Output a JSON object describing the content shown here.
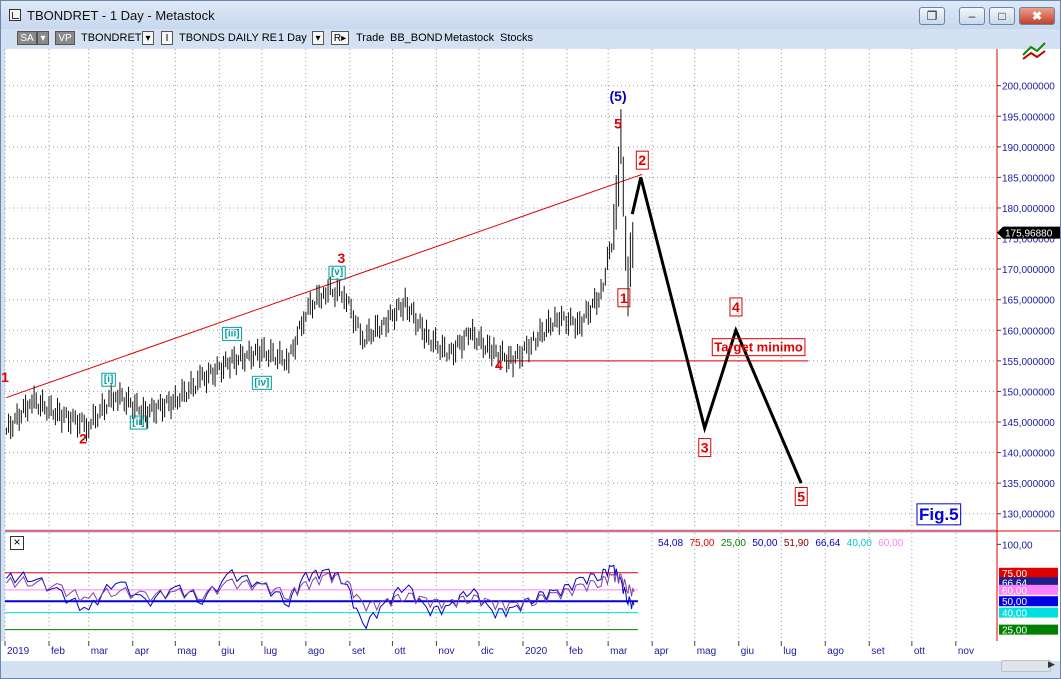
{
  "window": {
    "title": "TBONDRET - 1 Day - Metastock",
    "controls": {
      "restore": "❐",
      "minimize": "–",
      "maximize": "□",
      "close": "✖"
    },
    "extra_icon": "chart-window-icon"
  },
  "toolbar": {
    "sa": "SA",
    "vp": "VP",
    "symbol": "TBONDRET",
    "security_name": "TBONDS DAILY RE",
    "period": "1 Day",
    "trade": "Trade",
    "expert": "BB_BOND",
    "source": "Metastock",
    "asset_class": "Stocks"
  },
  "chart_data": [
    {
      "type": "line",
      "subtype": "ohlc-bars",
      "price_axis": {
        "ticks": [
          "130,000000",
          "135,000000",
          "140,000000",
          "145,000000",
          "150,000000",
          "155,000000",
          "160,000000",
          "165,000000",
          "170,000000",
          "175,000000",
          "180,000000",
          "185,000000",
          "190,000000",
          "195,000000",
          "200,000000"
        ],
        "tick_values": [
          130,
          135,
          140,
          145,
          150,
          155,
          160,
          165,
          170,
          175,
          180,
          185,
          190,
          195,
          200
        ],
        "range": [
          127.5,
          206
        ],
        "last_price_label": "175,96880",
        "last_price": 175.9688,
        "side": "right"
      },
      "time_axis": {
        "labels": [
          "2019",
          "feb",
          "mar",
          "apr",
          "mag",
          "giu",
          "lug",
          "ago",
          "set",
          "ott",
          "nov",
          "dic",
          "2020",
          "feb",
          "mar",
          "apr",
          "mag",
          "giu",
          "lug",
          "ago",
          "set",
          "ott",
          "nov"
        ],
        "range": [
          "2019-01-01",
          "2020-11-30"
        ]
      },
      "series": [
        {
          "x": [
            "2019-01-02",
            "2019-01-20",
            "2019-02-10",
            "2019-03-01",
            "2019-03-20",
            "2019-04-10",
            "2019-05-01",
            "2019-05-20",
            "2019-06-10",
            "2019-07-01",
            "2019-07-20",
            "2019-08-01",
            "2019-08-15",
            "2019-08-28",
            "2019-09-10",
            "2019-09-25",
            "2019-10-10",
            "2019-10-25",
            "2019-11-10",
            "2019-11-25",
            "2019-12-10",
            "2019-12-25",
            "2020-01-10",
            "2020-01-25",
            "2020-02-10",
            "2020-02-25",
            "2020-03-05",
            "2020-03-10",
            "2020-03-15",
            "2020-03-20"
          ],
          "values": [
            143.5,
            148.5,
            146.0,
            144.5,
            149.5,
            146.5,
            148.5,
            152.0,
            155.0,
            156.5,
            155.0,
            163.0,
            166.5,
            166.0,
            158.5,
            161.0,
            164.5,
            159.0,
            156.0,
            159.5,
            156.5,
            155.0,
            158.5,
            162.0,
            161.0,
            166.0,
            176.0,
            191.0,
            167.0,
            178.0
          ]
        }
      ],
      "trendline": {
        "from": {
          "x": "2019-01-02",
          "y": 149.0
        },
        "to": {
          "x": "2020-03-25",
          "y": 185.5
        }
      },
      "support_line": {
        "y": 155.0,
        "from": "2019-12-20",
        "to": "2020-07-20"
      },
      "projection": {
        "x": [
          "2020-03-18",
          "2020-03-24",
          "2020-05-08",
          "2020-05-30",
          "2020-07-15"
        ],
        "y": [
          179.0,
          185.0,
          144.0,
          160.0,
          135.0
        ]
      },
      "annotations": [
        {
          "text": "1",
          "x": "2019-01-01",
          "y": 151.5,
          "color": "#e00000",
          "boxed": false
        },
        {
          "text": "2",
          "x": "2019-02-25",
          "y": 141.5,
          "color": "#e00000",
          "boxed": false
        },
        {
          "text": "3",
          "x": "2019-08-26",
          "y": 171.0,
          "color": "#e00000",
          "boxed": false
        },
        {
          "text": "4",
          "x": "2019-12-15",
          "y": 153.5,
          "color": "#e00000",
          "boxed": false
        },
        {
          "text": "5",
          "x": "2020-03-08",
          "y": 193.0,
          "color": "#e00000",
          "boxed": false
        },
        {
          "text": "(5)",
          "x": "2020-03-08",
          "y": 197.5,
          "color": "#0000c8",
          "boxed": false
        },
        {
          "text": "[i]",
          "x": "2019-03-15",
          "y": 151.5,
          "color": "#00a0a0",
          "boxed": true
        },
        {
          "text": "[ii]",
          "x": "2019-04-05",
          "y": 144.5,
          "color": "#00a0a0",
          "boxed": true
        },
        {
          "text": "[iii]",
          "x": "2019-06-10",
          "y": 159.0,
          "color": "#00a0a0",
          "boxed": true
        },
        {
          "text": "[iv]",
          "x": "2019-07-01",
          "y": 151.0,
          "color": "#00a0a0",
          "boxed": true
        },
        {
          "text": "[v]",
          "x": "2019-08-23",
          "y": 169.0,
          "color": "#00a0a0",
          "boxed": true
        },
        {
          "text": "1",
          "x": "2020-03-12",
          "y": 164.5,
          "color": "#e00000",
          "boxed": true
        },
        {
          "text": "2",
          "x": "2020-03-25",
          "y": 187.0,
          "color": "#e00000",
          "boxed": true
        },
        {
          "text": "3",
          "x": "2020-05-08",
          "y": 140.0,
          "color": "#e00000",
          "boxed": true
        },
        {
          "text": "4",
          "x": "2020-05-30",
          "y": 163.0,
          "color": "#e00000",
          "boxed": true
        },
        {
          "text": "5",
          "x": "2020-07-15",
          "y": 132.0,
          "color": "#e00000",
          "boxed": true
        },
        {
          "text": "Target minimo",
          "x": "2020-06-15",
          "y": 156.5,
          "color": "#e00000",
          "boxed": true
        },
        {
          "text": "Fig.5",
          "x": "2020-10-20",
          "y": 129.0,
          "color": "#0000e0",
          "boxed": true
        }
      ]
    },
    {
      "type": "line",
      "subtype": "oscillator",
      "legend_values": [
        {
          "text": "54,08",
          "color": "#0000c8"
        },
        {
          "text": "75,00",
          "color": "#e00000"
        },
        {
          "text": "25,00",
          "color": "#008000"
        },
        {
          "text": "50,00",
          "color": "#0000c8"
        },
        {
          "text": "51,90",
          "color": "#800000"
        },
        {
          "text": "66,64",
          "color": "#0000c8"
        },
        {
          "text": "40,00",
          "color": "#00c8c8"
        },
        {
          "text": "60,00",
          "color": "#ff80ff"
        }
      ],
      "axis": {
        "ticks": [
          "100,00"
        ],
        "tick_values": [
          100
        ],
        "range": [
          15,
          110
        ],
        "level_labels": [
          {
            "text": "75,00",
            "value": 75,
            "bg": "#e00000",
            "fg": "#ffffff"
          },
          {
            "text": "66,64",
            "value": 66.64,
            "bg": "#1f1f8c",
            "fg": "#ffffff"
          },
          {
            "text": "60,00",
            "value": 60,
            "bg": "#ff80ff",
            "fg": "#ffffff"
          },
          {
            "text": "50,00",
            "value": 50,
            "bg": "#0000e0",
            "fg": "#ffffff"
          },
          {
            "text": "40,00",
            "value": 40,
            "bg": "#00e0e0",
            "fg": "#ffffff"
          },
          {
            "text": "25,00",
            "value": 25,
            "bg": "#008000",
            "fg": "#ffffff"
          }
        ]
      },
      "levels": [
        {
          "value": 75,
          "color": "#e00000"
        },
        {
          "value": 60,
          "color": "#ff80ff"
        },
        {
          "value": 50,
          "color": "#0000e0"
        },
        {
          "value": 40,
          "color": "#00e0e0"
        },
        {
          "value": 25,
          "color": "#008000"
        }
      ],
      "series": [
        {
          "name": "",
          "color": "#0000c8",
          "x": [
            "2019-01-02",
            "2019-01-20",
            "2019-02-10",
            "2019-03-01",
            "2019-03-20",
            "2019-04-10",
            "2019-05-01",
            "2019-05-20",
            "2019-06-10",
            "2019-07-01",
            "2019-07-20",
            "2019-08-01",
            "2019-08-15",
            "2019-08-28",
            "2019-09-10",
            "2019-09-25",
            "2019-10-10",
            "2019-10-25",
            "2019-11-10",
            "2019-11-25",
            "2019-12-10",
            "2019-12-25",
            "2020-01-10",
            "2020-01-25",
            "2020-02-10",
            "2020-02-25",
            "2020-03-05",
            "2020-03-10",
            "2020-03-15",
            "2020-03-20"
          ],
          "values": [
            70,
            72,
            55,
            42,
            70,
            48,
            62,
            52,
            74,
            64,
            50,
            72,
            76,
            70,
            28,
            46,
            66,
            42,
            44,
            62,
            40,
            42,
            55,
            58,
            68,
            74,
            80,
            66,
            52,
            44
          ]
        },
        {
          "name": "",
          "color": "#8040a0",
          "x": [
            "2019-01-02",
            "2019-01-20",
            "2019-02-10",
            "2019-03-01",
            "2019-03-20",
            "2019-04-10",
            "2019-05-01",
            "2019-05-20",
            "2019-06-10",
            "2019-07-01",
            "2019-07-20",
            "2019-08-01",
            "2019-08-15",
            "2019-08-28",
            "2019-09-10",
            "2019-09-25",
            "2019-10-10",
            "2019-10-25",
            "2019-11-10",
            "2019-11-25",
            "2019-12-10",
            "2019-12-25",
            "2020-01-10",
            "2020-01-25",
            "2020-02-10",
            "2020-02-25",
            "2020-03-05",
            "2020-03-10",
            "2020-03-15",
            "2020-03-20"
          ],
          "values": [
            66,
            68,
            60,
            52,
            60,
            54,
            58,
            56,
            66,
            64,
            56,
            64,
            72,
            70,
            46,
            48,
            56,
            50,
            48,
            54,
            48,
            46,
            52,
            56,
            62,
            68,
            72,
            70,
            62,
            56
          ]
        }
      ]
    }
  ]
}
